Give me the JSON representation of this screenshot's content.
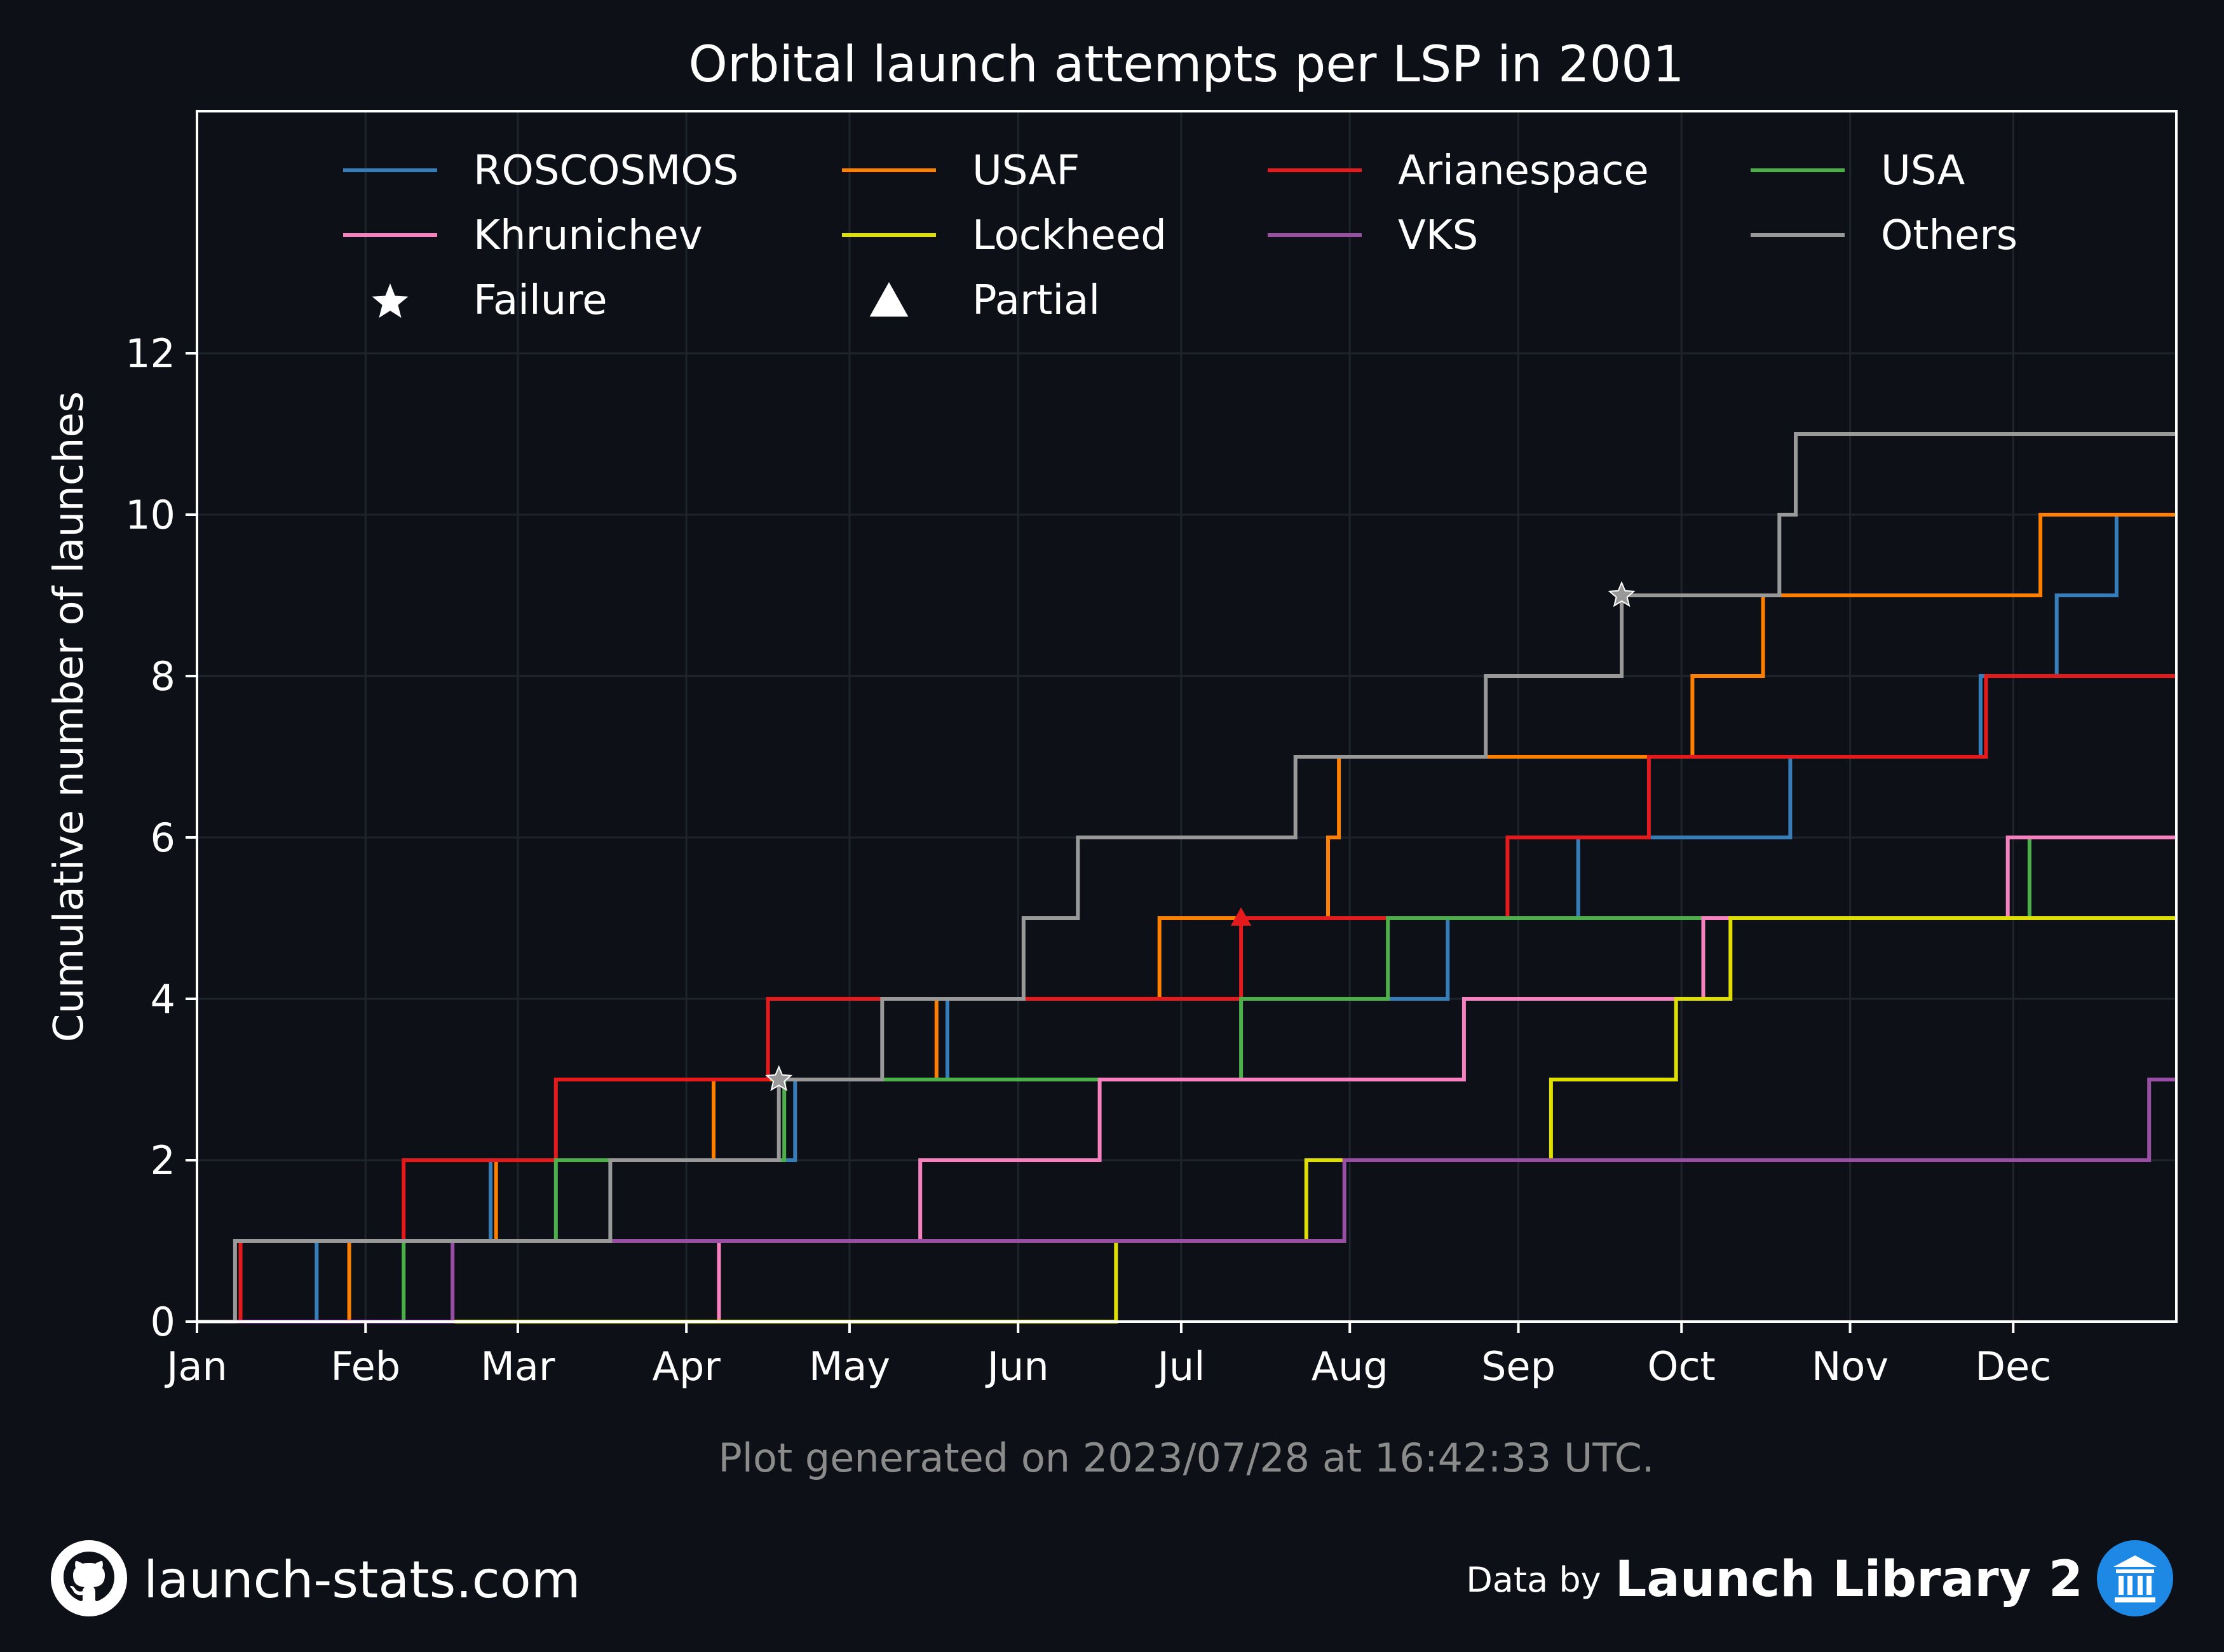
{
  "chart_data": {
    "type": "line",
    "step": "post",
    "title": "Orbital launch attempts per LSP in 2001",
    "xlabel": "",
    "ylabel": "Cumulative number of launches",
    "x_axis": {
      "type": "date",
      "range": [
        "2001-01-01",
        "2001-12-31"
      ],
      "ticks": [
        "2001-01-01",
        "2001-02-01",
        "2001-03-01",
        "2001-04-01",
        "2001-05-01",
        "2001-06-01",
        "2001-07-01",
        "2001-08-01",
        "2001-09-01",
        "2001-10-01",
        "2001-11-01",
        "2001-12-01"
      ],
      "tick_labels": [
        "Jan",
        "Feb",
        "Mar",
        "Apr",
        "May",
        "Jun",
        "Jul",
        "Aug",
        "Sep",
        "Oct",
        "Nov",
        "Dec"
      ]
    },
    "y_axis": {
      "range": [
        0,
        15
      ],
      "ticks": [
        0,
        2,
        4,
        6,
        8,
        10,
        12
      ],
      "tick_labels": [
        "0",
        "2",
        "4",
        "6",
        "8",
        "10",
        "12"
      ]
    },
    "grid": true,
    "legend_placement": "top",
    "series": [
      {
        "name": "ROSCOSMOS",
        "color": "#377eb8",
        "steps": [
          [
            "2001-01-23",
            1
          ],
          [
            "2001-02-24",
            2
          ],
          [
            "2001-04-21",
            3
          ],
          [
            "2001-05-19",
            4
          ],
          [
            "2001-08-19",
            5
          ],
          [
            "2001-09-12",
            6
          ],
          [
            "2001-10-21",
            7
          ],
          [
            "2001-11-25",
            8
          ],
          [
            "2001-12-09",
            9
          ],
          [
            "2001-12-20",
            10
          ]
        ]
      },
      {
        "name": "USAF",
        "color": "#ff7f00",
        "steps": [
          [
            "2001-01-29",
            1
          ],
          [
            "2001-02-25",
            2
          ],
          [
            "2001-04-06",
            3
          ],
          [
            "2001-05-17",
            4
          ],
          [
            "2001-06-27",
            5
          ],
          [
            "2001-07-28",
            6
          ],
          [
            "2001-07-30",
            7
          ],
          [
            "2001-10-03",
            8
          ],
          [
            "2001-10-16",
            9
          ],
          [
            "2001-12-06",
            10
          ]
        ]
      },
      {
        "name": "Arianespace",
        "color": "#e41a1c",
        "steps": [
          [
            "2001-01-09",
            1
          ],
          [
            "2001-02-08",
            2
          ],
          [
            "2001-03-08",
            3
          ],
          [
            "2001-04-16",
            4
          ],
          [
            "2001-06-08",
            4
          ],
          [
            "2001-07-12",
            5
          ],
          [
            "2001-08-30",
            6
          ],
          [
            "2001-09-25",
            7
          ],
          [
            "2001-11-26",
            8
          ]
        ]
      },
      {
        "name": "USA",
        "color": "#4daf4a",
        "steps": [
          [
            "2001-02-08",
            1
          ],
          [
            "2001-03-08",
            2
          ],
          [
            "2001-04-19",
            3
          ],
          [
            "2001-07-12",
            4
          ],
          [
            "2001-08-08",
            5
          ],
          [
            "2001-12-04",
            6
          ]
        ]
      },
      {
        "name": "Khrunichev",
        "color": "#f781bf",
        "steps": [
          [
            "2001-04-07",
            1
          ],
          [
            "2001-05-14",
            2
          ],
          [
            "2001-06-16",
            3
          ],
          [
            "2001-08-22",
            4
          ],
          [
            "2001-10-05",
            5
          ],
          [
            "2001-11-30",
            6
          ]
        ]
      },
      {
        "name": "Lockheed",
        "color": "#dede00",
        "steps": [
          [
            "2001-06-19",
            1
          ],
          [
            "2001-07-24",
            2
          ],
          [
            "2001-09-07",
            3
          ],
          [
            "2001-09-30",
            4
          ],
          [
            "2001-10-10",
            5
          ]
        ]
      },
      {
        "name": "VKS",
        "color": "#984ea3",
        "steps": [
          [
            "2001-02-17",
            1
          ],
          [
            "2001-07-31",
            2
          ],
          [
            "2001-12-26",
            3
          ]
        ]
      },
      {
        "name": "Others",
        "color": "#999999",
        "steps": [
          [
            "2001-01-08",
            1
          ],
          [
            "2001-03-18",
            2
          ],
          [
            "2001-04-18",
            3
          ],
          [
            "2001-05-07",
            4
          ],
          [
            "2001-06-02",
            5
          ],
          [
            "2001-06-12",
            6
          ],
          [
            "2001-07-22",
            7
          ],
          [
            "2001-08-26",
            8
          ],
          [
            "2001-09-20",
            9
          ],
          [
            "2001-10-19",
            10
          ],
          [
            "2001-10-22",
            11
          ]
        ]
      }
    ],
    "markers": [
      {
        "series": "Others",
        "kind": "failure",
        "x": "2001-04-18",
        "y": 3
      },
      {
        "series": "Others",
        "kind": "failure",
        "x": "2001-09-20",
        "y": 9
      },
      {
        "series": "Arianespace",
        "kind": "partial",
        "x": "2001-07-12",
        "y": 5
      }
    ],
    "legend_extra": [
      {
        "label": "Failure",
        "marker": "star"
      },
      {
        "label": "Partial",
        "marker": "triangle"
      }
    ],
    "footnote": "Plot generated on 2023/07/28 at 16:42:33 UTC."
  },
  "footer": {
    "site": "launch-stats.com",
    "data_by": "Data by",
    "provider": "Launch Library 2",
    "site_icon": "github-icon",
    "provider_icon": "library-icon"
  },
  "colors": {
    "background": "#0d1117",
    "text": "#ffffff",
    "footnote": "#8b8b8b",
    "grid": "#1e242c"
  }
}
